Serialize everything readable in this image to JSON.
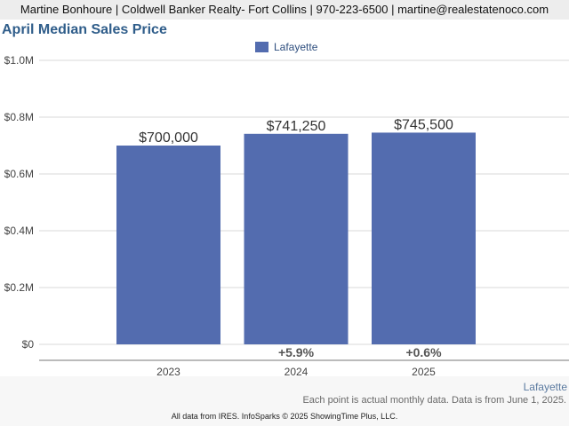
{
  "header": {
    "agent_line": "Martine Bonhoure | Coldwell Banker Realty- Fort Collins | 970-223-6500 | martine@realestatenoco.com"
  },
  "footer": {
    "region_label": "Lafayette",
    "note": "Each point is actual monthly data. Data is from June 1, 2025.",
    "credits": "All data from IRES. InfoSparks © 2025 ShowingTime Plus, LLC."
  },
  "colors": {
    "bar": "#536caf",
    "title": "#2f5d8a",
    "grid": "#d9d9d9",
    "axis": "#777777"
  },
  "chart_data": {
    "type": "bar",
    "title": "April Median Sales Price",
    "xlabel": "",
    "ylabel": "",
    "categories": [
      "2023",
      "2024",
      "2025"
    ],
    "series": [
      {
        "name": "Lafayette",
        "values": [
          700000,
          741250,
          745500
        ]
      }
    ],
    "value_labels": [
      "$700,000",
      "$741,250",
      "$745,500"
    ],
    "change_labels": [
      "",
      "+5.9%",
      "+0.6%"
    ],
    "yticks": [
      0,
      200000,
      400000,
      600000,
      800000,
      1000000
    ],
    "ytick_labels": [
      "$0",
      "$0.2M",
      "$0.4M",
      "$0.6M",
      "$0.8M",
      "$1.0M"
    ],
    "ylim": [
      0,
      1000000
    ],
    "grid": true,
    "legend_position": "top-center"
  }
}
